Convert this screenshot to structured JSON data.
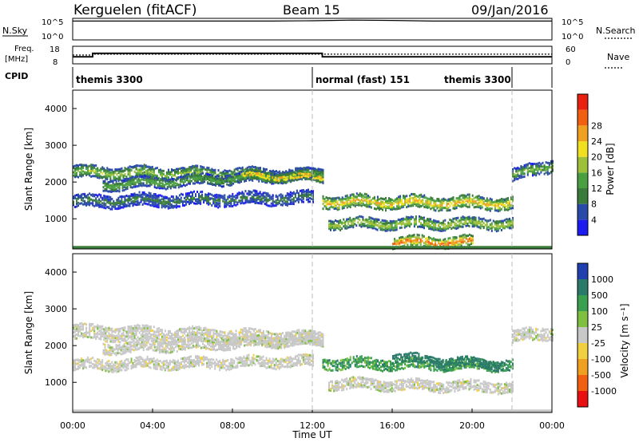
{
  "header": {
    "station": "Kerguelen (fitACF)",
    "beam": "Beam 15",
    "date": "09/Jan/2016"
  },
  "top_panels": {
    "nsky_label": "N.Sky",
    "nsky_ticks": [
      "10^5",
      "10^0"
    ],
    "nsearch_label": "N.Search",
    "nsearch_ticks": [
      "10^5",
      "10^0"
    ],
    "freq_label_1": "Freq.",
    "freq_label_2": "[MHz]",
    "freq_ticks": [
      "18",
      "8"
    ],
    "nave_label": "Nave",
    "nave_ticks": [
      "60",
      "0"
    ],
    "cpid_label": "CPID",
    "cpid_segments": [
      {
        "label": "themis 3300",
        "start_h": 0.0,
        "end_h": 12.0
      },
      {
        "label": "normal (fast) 151",
        "start_h": 12.0,
        "end_h": 22.0
      },
      {
        "label": "themis 3300",
        "start_h": 22.0,
        "end_h": 24.0
      }
    ]
  },
  "axes": {
    "xlabel": "Time UT",
    "xticks": [
      "00:00",
      "04:00",
      "08:00",
      "12:00",
      "16:00",
      "20:00",
      "00:00"
    ],
    "ylabel": "Slant Range [km]",
    "yticks": [
      "1000",
      "2000",
      "3000",
      "4000"
    ]
  },
  "power_colorbar": {
    "label": "Power [dB]",
    "ticks": [
      "4",
      "8",
      "12",
      "16",
      "20",
      "24",
      "28"
    ],
    "colors": [
      "#1c1cf0",
      "#2a4aa8",
      "#3a7a3a",
      "#4aa040",
      "#9cc03a",
      "#f0e020",
      "#f0a020",
      "#f06010",
      "#e82010"
    ]
  },
  "velocity_colorbar": {
    "label": "Velocity [m s⁻¹]",
    "ticks": [
      "1000",
      "500",
      "100",
      "25",
      "-25",
      "-100",
      "-500",
      "-1000"
    ],
    "colors": [
      "#2040b0",
      "#2a7a6a",
      "#3aa050",
      "#80c040",
      "#c8c8c8",
      "#f0d040",
      "#f0a020",
      "#f06010",
      "#e81010"
    ]
  },
  "chart_data": [
    {
      "type": "line",
      "title": "N.Sky / N.Search",
      "x_unit": "hours UT",
      "xlim": [
        0,
        24
      ],
      "series": [
        {
          "name": "N.Sky",
          "x": [
            0,
            1,
            2,
            4,
            6,
            8,
            10,
            12,
            13,
            14,
            16,
            18,
            20,
            22,
            24
          ],
          "y_log10": [
            4.9,
            4.9,
            4.9,
            4.9,
            4.9,
            4.9,
            4.9,
            5.0,
            5.1,
            5.2,
            5.1,
            4.9,
            4.9,
            4.9,
            4.9
          ]
        },
        {
          "name": "N.Search",
          "x": [
            0,
            24
          ],
          "y_log10": [
            4.9,
            4.9
          ]
        }
      ]
    },
    {
      "type": "line",
      "title": "Freq. / Nave",
      "x_unit": "hours UT",
      "xlim": [
        0,
        24
      ],
      "series": [
        {
          "name": "Freq.",
          "x": [
            0,
            1,
            1,
            12.5,
            12.5,
            24
          ],
          "y": [
            12,
            12,
            14,
            14,
            12,
            12
          ]
        },
        {
          "name": "Nave",
          "x": [
            0,
            1,
            1,
            24
          ],
          "y": [
            30,
            30,
            33,
            33
          ]
        }
      ]
    },
    {
      "type": "heatmap",
      "title": "Power [dB]",
      "xlabel": "Time UT",
      "ylabel": "Slant Range [km]",
      "xlim": [
        0,
        24
      ],
      "ylim": [
        180,
        4500
      ],
      "clim": [
        0,
        32
      ],
      "bands": [
        {
          "t0": 0.0,
          "t1": 12.5,
          "r_start": 2300,
          "r_end": 2200,
          "width": 300,
          "peak_db": 16
        },
        {
          "t0": 1.5,
          "t1": 12.5,
          "r_start": 1950,
          "r_end": 2250,
          "width": 250,
          "peak_db": 14
        },
        {
          "t0": 8.5,
          "t1": 12.5,
          "r_start": 2200,
          "r_end": 2150,
          "width": 200,
          "peak_db": 26
        },
        {
          "t0": 0.0,
          "t1": 12.0,
          "r_start": 1500,
          "r_end": 1600,
          "width": 300,
          "peak_db": 9
        },
        {
          "t0": 12.5,
          "t1": 22.0,
          "r_start": 1500,
          "r_end": 1450,
          "width": 300,
          "peak_db": 22
        },
        {
          "t0": 12.8,
          "t1": 22.0,
          "r_start": 900,
          "r_end": 900,
          "width": 250,
          "peak_db": 18
        },
        {
          "t0": 16.0,
          "t1": 20.0,
          "r_start": 400,
          "r_end": 400,
          "width": 250,
          "peak_db": 28
        },
        {
          "t0": 22.0,
          "t1": 24.0,
          "r_start": 2200,
          "r_end": 2500,
          "width": 300,
          "peak_db": 14
        }
      ]
    },
    {
      "type": "heatmap",
      "title": "Velocity [m s⁻¹]",
      "xlabel": "Time UT",
      "ylabel": "Slant Range [km]",
      "xlim": [
        0,
        24
      ],
      "ylim": [
        180,
        4500
      ],
      "clim": [
        -1000,
        1000
      ],
      "bands": [
        {
          "t0": 0.0,
          "t1": 12.5,
          "r_start": 2400,
          "r_end": 2200,
          "width": 350,
          "vel": 0
        },
        {
          "t0": 1.5,
          "t1": 12.5,
          "r_start": 1950,
          "r_end": 2200,
          "width": 250,
          "vel": 0
        },
        {
          "t0": 0.0,
          "t1": 12.0,
          "r_start": 1500,
          "r_end": 1600,
          "width": 250,
          "vel": 0
        },
        {
          "t0": 12.5,
          "t1": 22.0,
          "r_start": 1550,
          "r_end": 1500,
          "width": 250,
          "vel": 80
        },
        {
          "t0": 12.8,
          "t1": 22.0,
          "r_start": 1000,
          "r_end": 900,
          "width": 250,
          "vel": 0
        },
        {
          "t0": 16.0,
          "t1": 21.5,
          "r_start": 1700,
          "r_end": 1500,
          "width": 200,
          "vel": 350
        },
        {
          "t0": 22.0,
          "t1": 24.0,
          "r_start": 2250,
          "r_end": 2400,
          "width": 300,
          "vel": 0
        }
      ]
    }
  ]
}
